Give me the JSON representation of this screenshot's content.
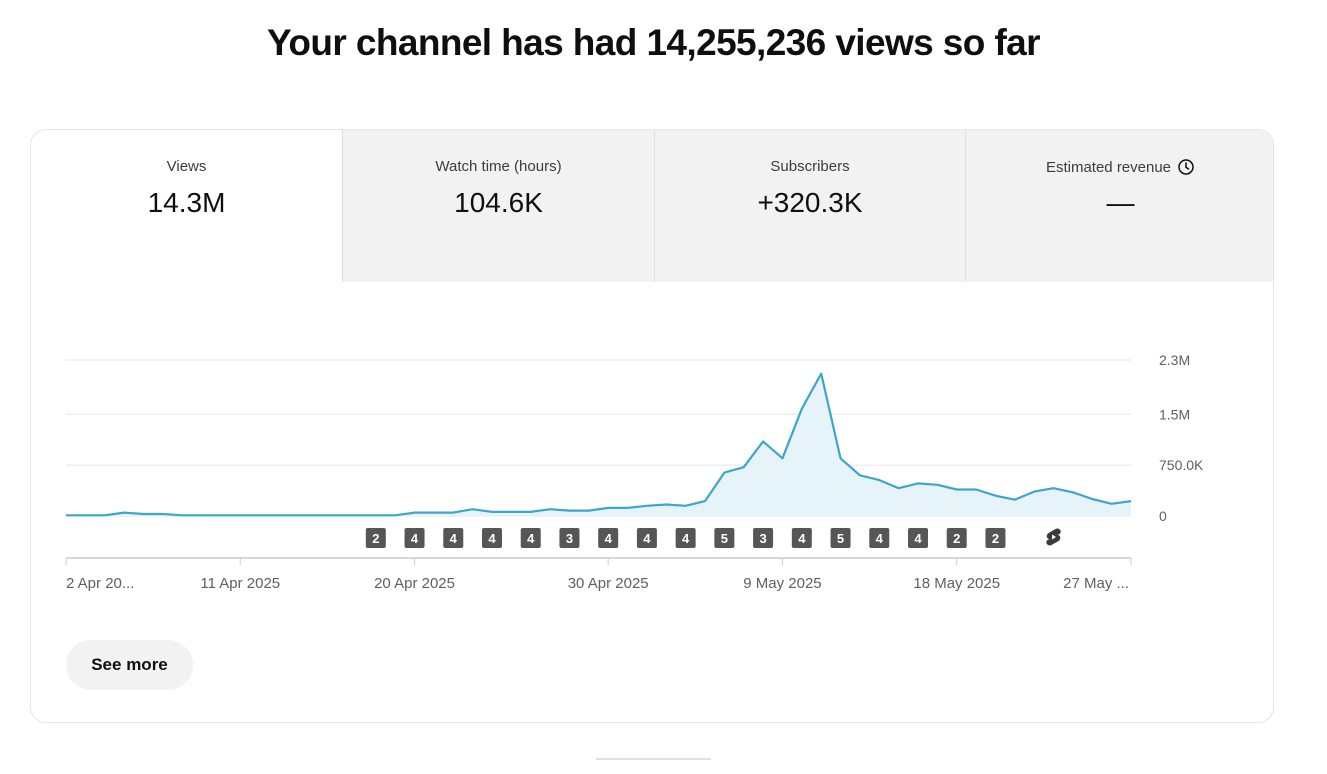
{
  "headline": "Your channel has had 14,255,236 views so far",
  "tabs": [
    {
      "label": "Views",
      "value": "14.3M",
      "active": true
    },
    {
      "label": "Watch time (hours)",
      "value": "104.6K",
      "active": false
    },
    {
      "label": "Subscribers",
      "value": "+320.3K",
      "active": false
    },
    {
      "label": "Estimated revenue",
      "value": "—",
      "active": false,
      "icon": "clock-icon"
    }
  ],
  "see_more_label": "See more",
  "colors": {
    "line": "#3ea6c8",
    "fill": "#e6f3f9",
    "marker": "#565656",
    "grid": "#e5e5e5"
  },
  "chart_data": {
    "type": "area",
    "series": [
      {
        "values": [
          0.01,
          0.01,
          0.01,
          0.05,
          0.03,
          0.03,
          0.01,
          0.01,
          0.01,
          0.01,
          0.01,
          0.01,
          0.01,
          0.01,
          0.01,
          0.01,
          0.01,
          0.01,
          0.05,
          0.05,
          0.05,
          0.1,
          0.06,
          0.06,
          0.06,
          0.1,
          0.08,
          0.08,
          0.12,
          0.12,
          0.15,
          0.17,
          0.15,
          0.22,
          0.64,
          0.72,
          1.1,
          0.85,
          1.58,
          2.1,
          0.85,
          0.6,
          0.53,
          0.41,
          0.48,
          0.46,
          0.39,
          0.39,
          0.3,
          0.24,
          0.36,
          0.41,
          0.35,
          0.25,
          0.18,
          0.22
        ]
      }
    ],
    "y_unit": "M",
    "ylim": [
      0,
      2.3
    ],
    "y_ticks": [
      {
        "value": 0,
        "label": "0"
      },
      {
        "value": 0.75,
        "label": "750.0K"
      },
      {
        "value": 1.5,
        "label": "1.5M"
      },
      {
        "value": 2.3,
        "label": "2.3M"
      }
    ],
    "x_tick_labels": [
      {
        "index": 0,
        "label": "2 Apr 20..."
      },
      {
        "index": 9,
        "label": "11 Apr 2025"
      },
      {
        "index": 18,
        "label": "20 Apr 2025"
      },
      {
        "index": 28,
        "label": "30 Apr 2025"
      },
      {
        "index": 37,
        "label": "9 May 2025"
      },
      {
        "index": 46,
        "label": "18 May 2025"
      },
      {
        "index": 55,
        "label": "27 May ..."
      }
    ],
    "upload_markers": [
      {
        "index": 16,
        "label": "2"
      },
      {
        "index": 18,
        "label": "4"
      },
      {
        "index": 20,
        "label": "4"
      },
      {
        "index": 22,
        "label": "4"
      },
      {
        "index": 24,
        "label": "4"
      },
      {
        "index": 26,
        "label": "3"
      },
      {
        "index": 28,
        "label": "4"
      },
      {
        "index": 30,
        "label": "4"
      },
      {
        "index": 32,
        "label": "4"
      },
      {
        "index": 34,
        "label": "5"
      },
      {
        "index": 36,
        "label": "3"
      },
      {
        "index": 38,
        "label": "4"
      },
      {
        "index": 40,
        "label": "5"
      },
      {
        "index": 42,
        "label": "4"
      },
      {
        "index": 44,
        "label": "4"
      },
      {
        "index": 46,
        "label": "2"
      },
      {
        "index": 48,
        "label": "2"
      },
      {
        "index": 51,
        "label": "",
        "icon": "shorts-icon"
      }
    ],
    "grid": true
  }
}
